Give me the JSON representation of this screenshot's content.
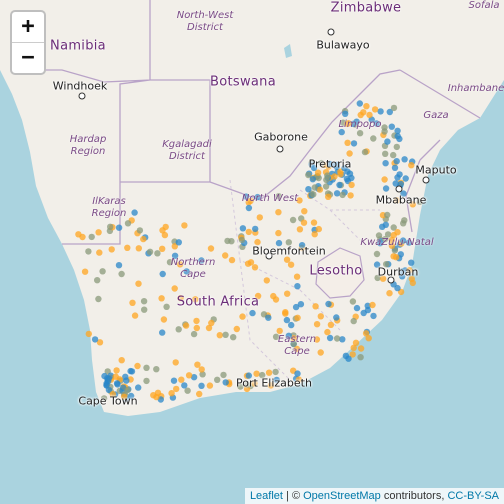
{
  "zoom_control": {
    "zoom_in": "+",
    "zoom_out": "−"
  },
  "countries": {
    "zimbabwe": "Zimbabwe",
    "namibia": "Namibia",
    "botswana": "Botswana",
    "south_africa": "South Africa",
    "lesotho": "Lesotho"
  },
  "regions": {
    "north_west_district": "North-West\nDistrict",
    "hardap": "Hardap\nRegion",
    "kgalagadi": "Kgalagadi\nDistrict",
    "ilkaras": "IlKaras\nRegion",
    "northern_cape": "Northern\nCape",
    "limpopo": "Limpopo",
    "north_west": "North West",
    "kwazulu_natal": "KwaZulu-Natal",
    "eastern_cape": "Eastern\nCape",
    "inhambane": "Inhambane",
    "gaza": "Gaza",
    "sofala": "Sofala"
  },
  "cities": {
    "bulawayo": "Bulawayo",
    "windhoek": "Windhoek",
    "gaborone": "Gaborone",
    "pretoria": "Pretoria",
    "maputo": "Maputo",
    "mbabane": "Mbabane",
    "bloemfontein": "Bloemfontein",
    "durban": "Durban",
    "port_elizabeth": "Port Elizabeth",
    "cape_town": "Cape Town"
  },
  "attribution": {
    "leaflet": "Leaflet",
    "separator": "| ©",
    "osm": "OpenStreetMap",
    "contributors": "contributors,",
    "license": "CC-BY-SA"
  },
  "colors": {
    "water": "#aad3df",
    "land": "#f2efe9",
    "border": "#b9a3c8",
    "marker_orange": "#ffa520",
    "marker_blue": "#2a87c8",
    "marker_gray": "#8a9a7a"
  }
}
